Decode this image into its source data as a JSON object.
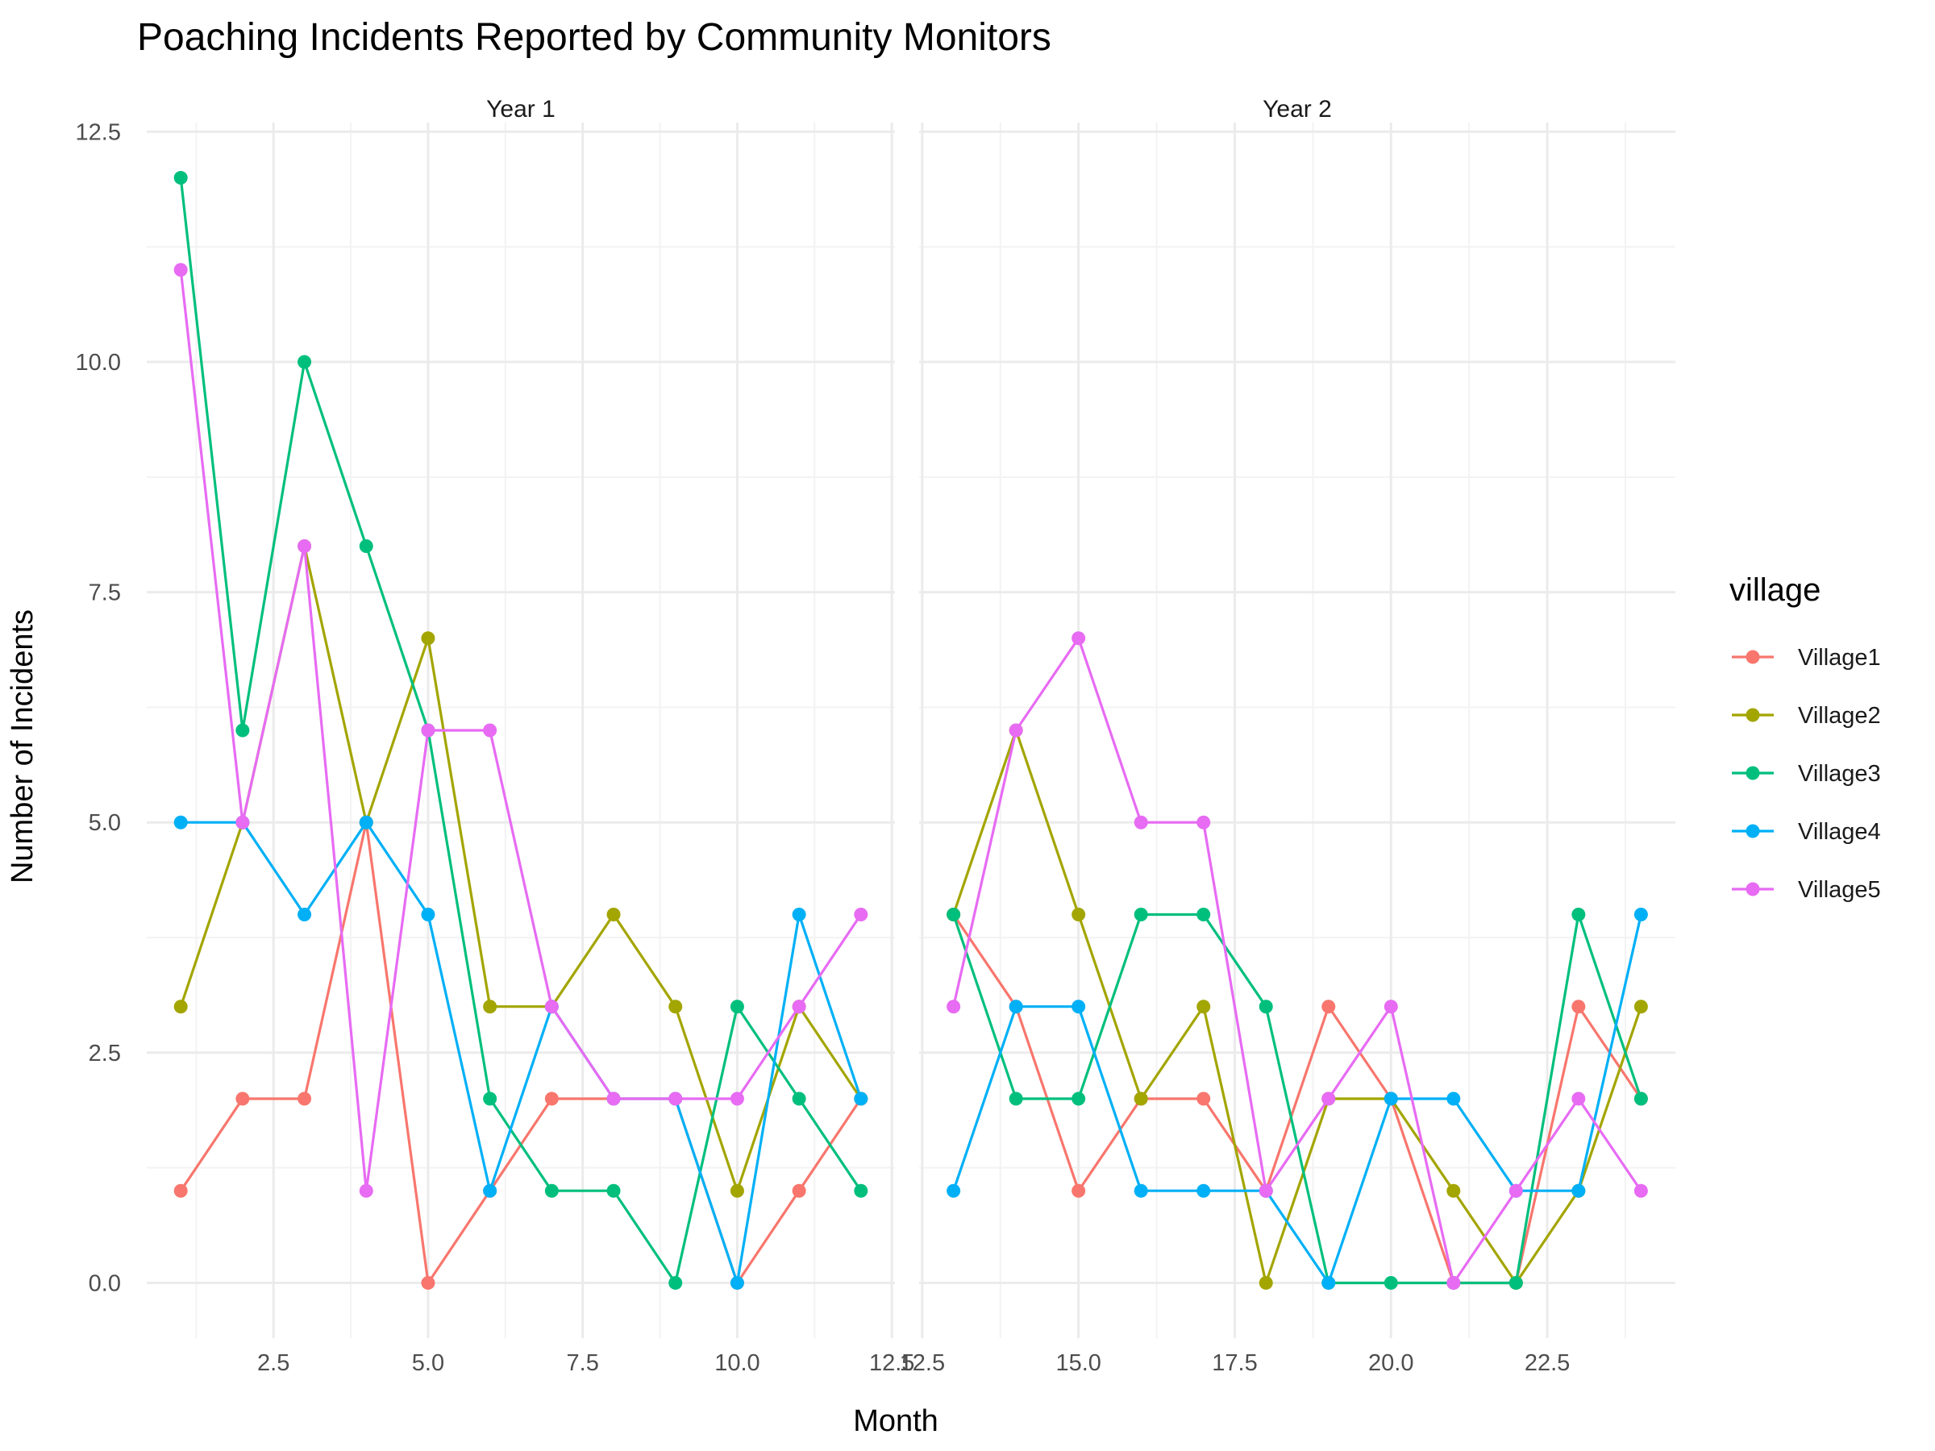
{
  "chart_data": {
    "type": "line",
    "title": "Poaching Incidents Reported by Community Monitors",
    "xlabel": "Month",
    "ylabel": "Number of Incidents",
    "legend_title": "village",
    "legend_position": "right",
    "grid": true,
    "ylim": [
      -0.6,
      12.6
    ],
    "yticks": [
      0,
      2.5,
      5,
      7.5,
      10,
      12.5
    ],
    "ytick_labels": [
      "0.0",
      "2.5",
      "5.0",
      "7.5",
      "10.0",
      "12.5"
    ],
    "facets": [
      {
        "label": "Year 1",
        "xlim": [
          0.45,
          12.55
        ],
        "xticks": [
          2.5,
          5,
          7.5,
          10,
          12.5
        ],
        "xtick_labels": [
          "2.5",
          "5.0",
          "7.5",
          "10.0",
          "12.5"
        ],
        "x": [
          1,
          2,
          3,
          4,
          5,
          6,
          7,
          8,
          9,
          10,
          11,
          12
        ]
      },
      {
        "label": "Year 2",
        "xlim": [
          12.45,
          24.55
        ],
        "xticks": [
          12.5,
          15,
          17.5,
          20,
          22.5
        ],
        "xtick_labels": [
          "12.5",
          "15.0",
          "17.5",
          "20.0",
          "22.5"
        ],
        "x": [
          13,
          14,
          15,
          16,
          17,
          18,
          19,
          20,
          21,
          22,
          23,
          24
        ]
      }
    ],
    "series": [
      {
        "name": "Village1",
        "color": "#F8766D",
        "values": [
          [
            1,
            2,
            2,
            5,
            0,
            1,
            2,
            2,
            2,
            0,
            1,
            2
          ],
          [
            4,
            3,
            1,
            2,
            2,
            1,
            3,
            2,
            0,
            0,
            3,
            2
          ]
        ]
      },
      {
        "name": "Village2",
        "color": "#A3A500",
        "values": [
          [
            3,
            5,
            8,
            5,
            7,
            3,
            3,
            4,
            3,
            1,
            3,
            2
          ],
          [
            4,
            6,
            4,
            2,
            3,
            0,
            2,
            2,
            1,
            0,
            1,
            3
          ]
        ]
      },
      {
        "name": "Village3",
        "color": "#00BF7D",
        "values": [
          [
            12,
            6,
            10,
            8,
            6,
            2,
            1,
            1,
            0,
            3,
            2,
            1
          ],
          [
            4,
            2,
            2,
            4,
            4,
            3,
            0,
            0,
            0,
            0,
            4,
            2
          ]
        ]
      },
      {
        "name": "Village4",
        "color": "#00B0F6",
        "values": [
          [
            5,
            5,
            4,
            5,
            4,
            1,
            3,
            2,
            2,
            0,
            4,
            2
          ],
          [
            1,
            3,
            3,
            1,
            1,
            1,
            0,
            2,
            2,
            1,
            1,
            4
          ]
        ]
      },
      {
        "name": "Village5",
        "color": "#E76BF3",
        "values": [
          [
            11,
            5,
            8,
            1,
            6,
            6,
            3,
            2,
            2,
            2,
            3,
            4
          ],
          [
            3,
            6,
            7,
            5,
            5,
            1,
            2,
            3,
            0,
            1,
            2,
            1
          ]
        ]
      }
    ]
  }
}
